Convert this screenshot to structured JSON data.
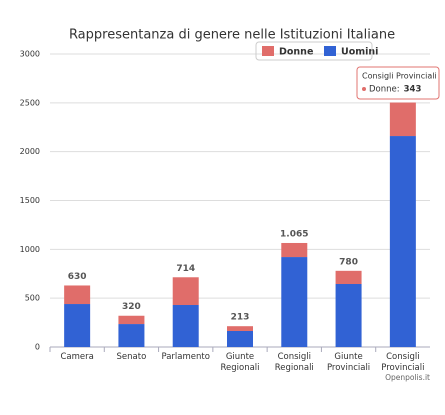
{
  "chart_data": {
    "type": "stacked_bar",
    "title": "Rappresentanza di genere nelle Istituzioni Italiane",
    "categories": [
      "Camera",
      "Senato",
      "Parlamento",
      "Giunte Regionali",
      "Consigli Regionali",
      "Giunte Provinciali",
      "Consigli Provinciali"
    ],
    "series": [
      {
        "name": "Donne",
        "color": "#e06d6a",
        "values": [
          190,
          85,
          284,
          49,
          144,
          135,
          343
        ]
      },
      {
        "name": "Uomini",
        "color": "#3162d4",
        "values": [
          440,
          235,
          430,
          164,
          921,
          645,
          2160
        ]
      }
    ],
    "stack_labels": [
      "630",
      "320",
      "714",
      "213",
      "1.065",
      "780",
      null
    ],
    "ylim": [
      0,
      3000
    ],
    "yticks": [
      0,
      500,
      1000,
      1500,
      2000,
      2500,
      3000
    ],
    "grid": true,
    "legend": "top-right",
    "tooltip": {
      "title": "Consigli Provinciali",
      "label": "Donne:",
      "value": 343
    },
    "credit": "Openpolis.it"
  }
}
